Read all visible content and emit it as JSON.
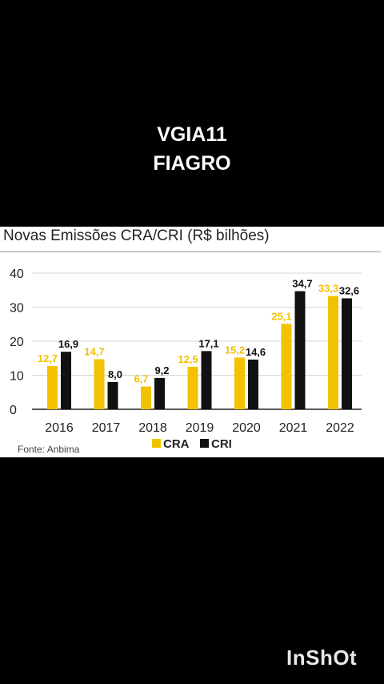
{
  "caption": {
    "line1": "VGIA11",
    "line2": "FIAGRO"
  },
  "watermark": "InShOt",
  "colors": {
    "cra": "#f2c200",
    "cri": "#111111",
    "grid": "#d6d6d6",
    "axis": "#222222",
    "text": "#222222"
  },
  "chart_data": {
    "type": "bar",
    "title": "Novas Emissões CRA/CRI (R$ bilhões)",
    "source": "Fonte: Anbima",
    "categories": [
      "2016",
      "2017",
      "2018",
      "2019",
      "2020",
      "2021",
      "2022"
    ],
    "series": [
      {
        "name": "CRA",
        "values": [
          12.7,
          14.7,
          6.7,
          12.5,
          15.2,
          25.1,
          33.3
        ],
        "labels": [
          "12,7",
          "14,7",
          "6,7",
          "12,5",
          "15,2",
          "25,1",
          "33,3"
        ]
      },
      {
        "name": "CRI",
        "values": [
          16.9,
          8.0,
          9.2,
          17.1,
          14.6,
          34.7,
          32.6
        ],
        "labels": [
          "16,9",
          "8,0",
          "9,2",
          "17,1",
          "14,6",
          "34,7",
          "32,6"
        ]
      }
    ],
    "yticks": [
      "0",
      "10",
      "20",
      "30",
      "40"
    ],
    "ylim": [
      0,
      40
    ],
    "grid": true,
    "legend": "bottom-center"
  }
}
